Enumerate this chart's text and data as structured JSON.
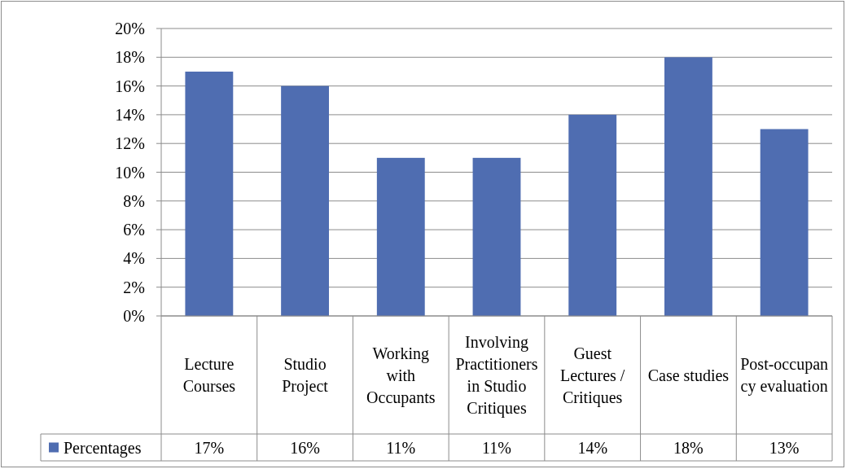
{
  "chart_data": {
    "type": "bar",
    "categories": [
      "Lecture Courses",
      "Studio Project",
      "Working with Occupants",
      "Involving Practitioners in Studio Critiques",
      "Guest Lectures / Critiques",
      "Case studies",
      "Post-occupancy evaluation"
    ],
    "series": [
      {
        "name": "Percentages",
        "color": "#4f6db1",
        "values": [
          17,
          16,
          11,
          11,
          14,
          18,
          13
        ],
        "value_labels": [
          "17%",
          "16%",
          "11%",
          "11%",
          "14%",
          "18%",
          "13%"
        ]
      }
    ],
    "ylim": [
      0,
      20
    ],
    "yticks": [
      {
        "value": 0,
        "label": "0%"
      },
      {
        "value": 2,
        "label": "2%"
      },
      {
        "value": 4,
        "label": "4%"
      },
      {
        "value": 6,
        "label": "6%"
      },
      {
        "value": 8,
        "label": "8%"
      },
      {
        "value": 10,
        "label": "10%"
      },
      {
        "value": 12,
        "label": "12%"
      },
      {
        "value": 14,
        "label": "14%"
      },
      {
        "value": 16,
        "label": "16%"
      },
      {
        "value": 18,
        "label": "18%"
      },
      {
        "value": 20,
        "label": "20%"
      }
    ],
    "grid": "y",
    "legend": "bottom"
  }
}
